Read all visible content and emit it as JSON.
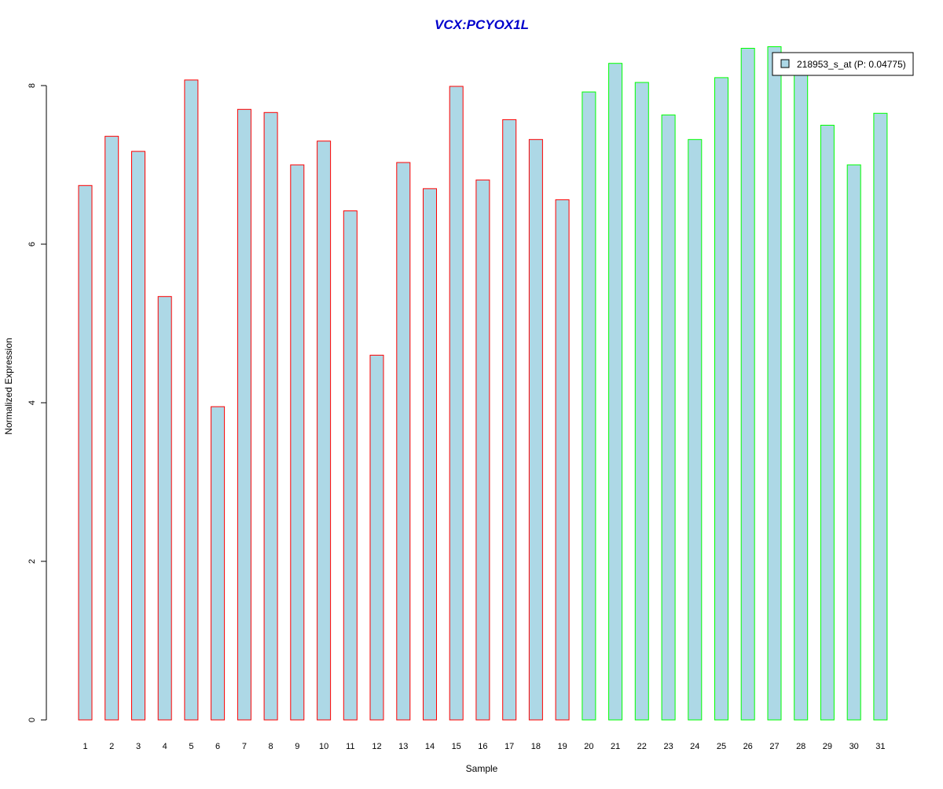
{
  "chart_data": {
    "type": "bar",
    "title": "VCX:PCYOX1L",
    "xlabel": "Sample",
    "ylabel": "Normalized Expression",
    "categories": [
      "1",
      "2",
      "3",
      "4",
      "5",
      "6",
      "7",
      "8",
      "9",
      "10",
      "11",
      "12",
      "13",
      "14",
      "15",
      "16",
      "17",
      "18",
      "19",
      "20",
      "21",
      "22",
      "23",
      "24",
      "25",
      "26",
      "27",
      "28",
      "29",
      "30",
      "31"
    ],
    "values": [
      6.74,
      7.36,
      7.17,
      5.34,
      8.07,
      3.95,
      7.7,
      7.66,
      7.0,
      7.3,
      6.42,
      4.6,
      7.03,
      6.7,
      7.99,
      6.81,
      7.57,
      7.32,
      6.56,
      7.92,
      8.28,
      8.04,
      7.63,
      7.32,
      8.1,
      8.47,
      8.49,
      8.21,
      7.5,
      7.0,
      7.65
    ],
    "groups": [
      "red",
      "red",
      "red",
      "red",
      "red",
      "red",
      "red",
      "red",
      "red",
      "red",
      "red",
      "red",
      "red",
      "red",
      "red",
      "red",
      "red",
      "red",
      "red",
      "green",
      "green",
      "green",
      "green",
      "green",
      "green",
      "green",
      "green",
      "green",
      "green",
      "green",
      "green"
    ],
    "yticks": [
      0,
      2,
      4,
      6,
      8
    ],
    "ylim": [
      0,
      8.5
    ],
    "grid": false,
    "legend": {
      "label": "218953_s_at (P: 0.04775)",
      "placement": "top-right"
    },
    "colors": {
      "bar_fill": "#add8e6",
      "group1_border": "#ff0000",
      "group2_border": "#00ff00",
      "title": "#0000cc",
      "axis": "#000000"
    }
  }
}
